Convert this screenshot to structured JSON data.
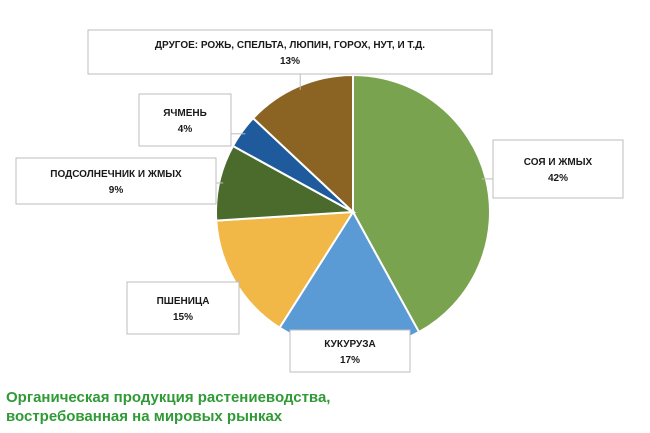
{
  "chart_data": {
    "type": "pie",
    "title": "",
    "slices": [
      {
        "label": "СОЯ И ЖМЫХ",
        "value": 42,
        "value_label": "42%",
        "color": "#7aa34f"
      },
      {
        "label": "КУКУРУЗА",
        "value": 17,
        "value_label": "17%",
        "color": "#5b9bd5"
      },
      {
        "label": "ПШЕНИЦА",
        "value": 15,
        "value_label": "15%",
        "color": "#f1b847"
      },
      {
        "label": "ПОДСОЛНЕЧНИК И ЖМЫХ",
        "value": 9,
        "value_label": "9%",
        "color": "#4b6b2d"
      },
      {
        "label": "ЯЧМЕНЬ",
        "value": 4,
        "value_label": "4%",
        "color": "#1f5b9c"
      },
      {
        "label": "ДРУГОЕ: РОЖЬ, СПЕЛЬТА, ЛЮПИН, ГОРОХ, НУТ, И Т.Д.",
        "value": 13,
        "value_label": "13%",
        "color": "#8b6424"
      }
    ],
    "legend": "none"
  },
  "caption": {
    "line1": "Органическая продукция растениеводства,",
    "line2": "востребованная на мировых рынках"
  }
}
